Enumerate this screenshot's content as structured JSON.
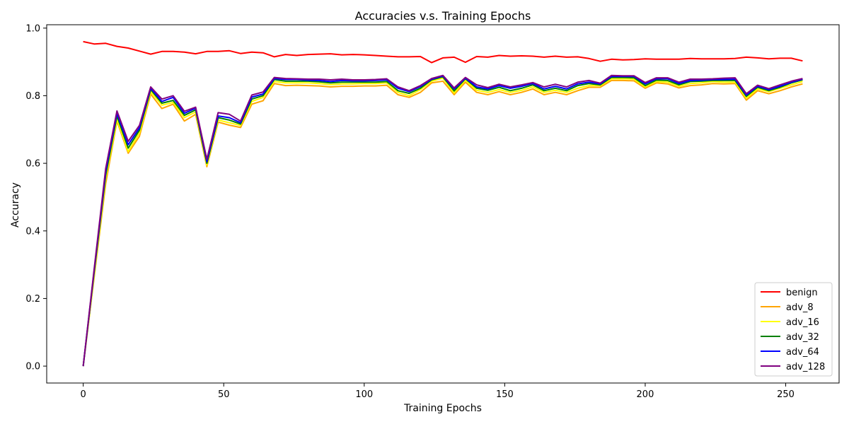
{
  "chart_data": {
    "type": "line",
    "title": "Accuracies v.s. Training Epochs",
    "xlabel": "Training Epochs",
    "ylabel": "Accuracy",
    "xlim": [
      -13,
      269
    ],
    "ylim": [
      -0.05,
      1.01
    ],
    "xticks": [
      0,
      50,
      100,
      150,
      200,
      250
    ],
    "yticks": [
      0.0,
      0.2,
      0.4,
      0.6,
      0.8,
      1.0
    ],
    "xtick_labels": [
      "0",
      "50",
      "100",
      "150",
      "200",
      "250"
    ],
    "ytick_labels": [
      "0.0",
      "0.2",
      "0.4",
      "0.6",
      "0.8",
      "1.0"
    ],
    "grid": false,
    "legend_position": "bottom-right",
    "x": [
      0,
      4,
      8,
      12,
      16,
      20,
      24,
      28,
      32,
      36,
      40,
      44,
      48,
      52,
      56,
      60,
      64,
      68,
      72,
      76,
      80,
      84,
      88,
      92,
      96,
      100,
      104,
      108,
      112,
      116,
      120,
      124,
      128,
      132,
      136,
      140,
      144,
      148,
      152,
      156,
      160,
      164,
      168,
      172,
      176,
      180,
      184,
      188,
      192,
      196,
      200,
      204,
      208,
      212,
      216,
      220,
      224,
      228,
      232,
      236,
      240,
      244,
      248,
      252,
      256
    ],
    "series": [
      {
        "name": "benign",
        "color": "#ff0000",
        "values": [
          0.96,
          0.953,
          0.955,
          0.946,
          0.941,
          0.932,
          0.923,
          0.931,
          0.931,
          0.929,
          0.924,
          0.931,
          0.931,
          0.933,
          0.925,
          0.929,
          0.927,
          0.915,
          0.922,
          0.919,
          0.922,
          0.923,
          0.924,
          0.921,
          0.922,
          0.921,
          0.919,
          0.917,
          0.915,
          0.915,
          0.916,
          0.898,
          0.912,
          0.914,
          0.899,
          0.916,
          0.914,
          0.919,
          0.917,
          0.918,
          0.917,
          0.914,
          0.917,
          0.914,
          0.915,
          0.91,
          0.902,
          0.908,
          0.906,
          0.907,
          0.909,
          0.908,
          0.908,
          0.908,
          0.91,
          0.909,
          0.909,
          0.909,
          0.91,
          0.914,
          0.912,
          0.909,
          0.911,
          0.911,
          0.903
        ]
      },
      {
        "name": "adv_8",
        "color": "#ffa500",
        "values": [
          0.0,
          0.27,
          0.54,
          0.725,
          0.63,
          0.68,
          0.805,
          0.762,
          0.775,
          0.725,
          0.745,
          0.59,
          0.722,
          0.713,
          0.706,
          0.775,
          0.785,
          0.836,
          0.83,
          0.831,
          0.83,
          0.829,
          0.826,
          0.828,
          0.828,
          0.829,
          0.829,
          0.831,
          0.803,
          0.795,
          0.81,
          0.838,
          0.843,
          0.803,
          0.84,
          0.81,
          0.803,
          0.812,
          0.803,
          0.81,
          0.82,
          0.803,
          0.81,
          0.803,
          0.815,
          0.825,
          0.825,
          0.845,
          0.845,
          0.844,
          0.822,
          0.838,
          0.835,
          0.823,
          0.83,
          0.832,
          0.836,
          0.835,
          0.836,
          0.787,
          0.815,
          0.806,
          0.815,
          0.826,
          0.835
        ]
      },
      {
        "name": "adv_16",
        "color": "#ffff00",
        "values": [
          0.0,
          0.275,
          0.555,
          0.73,
          0.635,
          0.69,
          0.812,
          0.772,
          0.78,
          0.735,
          0.752,
          0.595,
          0.728,
          0.72,
          0.712,
          0.783,
          0.795,
          0.842,
          0.838,
          0.838,
          0.838,
          0.836,
          0.833,
          0.835,
          0.835,
          0.836,
          0.836,
          0.838,
          0.81,
          0.8,
          0.818,
          0.843,
          0.852,
          0.808,
          0.846,
          0.816,
          0.81,
          0.818,
          0.81,
          0.816,
          0.826,
          0.81,
          0.816,
          0.81,
          0.822,
          0.83,
          0.83,
          0.85,
          0.85,
          0.849,
          0.826,
          0.842,
          0.84,
          0.828,
          0.836,
          0.838,
          0.842,
          0.84,
          0.84,
          0.793,
          0.82,
          0.812,
          0.822,
          0.832,
          0.842
        ]
      },
      {
        "name": "adv_32",
        "color": "#008000",
        "values": [
          0.0,
          0.285,
          0.565,
          0.74,
          0.645,
          0.698,
          0.818,
          0.778,
          0.786,
          0.742,
          0.758,
          0.6,
          0.735,
          0.728,
          0.716,
          0.79,
          0.8,
          0.848,
          0.843,
          0.843,
          0.843,
          0.841,
          0.838,
          0.84,
          0.84,
          0.84,
          0.84,
          0.842,
          0.815,
          0.807,
          0.822,
          0.847,
          0.856,
          0.814,
          0.85,
          0.822,
          0.816,
          0.825,
          0.815,
          0.822,
          0.832,
          0.815,
          0.822,
          0.815,
          0.83,
          0.836,
          0.832,
          0.854,
          0.854,
          0.853,
          0.83,
          0.846,
          0.845,
          0.832,
          0.842,
          0.843,
          0.845,
          0.845,
          0.845,
          0.798,
          0.825,
          0.815,
          0.825,
          0.838,
          0.847
        ]
      },
      {
        "name": "adv_64",
        "color": "#0000ff",
        "values": [
          0.0,
          0.29,
          0.575,
          0.748,
          0.655,
          0.705,
          0.822,
          0.783,
          0.795,
          0.748,
          0.763,
          0.605,
          0.74,
          0.735,
          0.72,
          0.796,
          0.805,
          0.851,
          0.848,
          0.848,
          0.846,
          0.845,
          0.842,
          0.845,
          0.844,
          0.844,
          0.845,
          0.847,
          0.822,
          0.812,
          0.827,
          0.849,
          0.858,
          0.82,
          0.852,
          0.826,
          0.82,
          0.83,
          0.822,
          0.828,
          0.836,
          0.82,
          0.828,
          0.82,
          0.835,
          0.84,
          0.835,
          0.857,
          0.857,
          0.857,
          0.835,
          0.85,
          0.85,
          0.836,
          0.845,
          0.846,
          0.848,
          0.848,
          0.849,
          0.802,
          0.828,
          0.818,
          0.828,
          0.84,
          0.849
        ]
      },
      {
        "name": "adv_128",
        "color": "#800080",
        "values": [
          0.0,
          0.295,
          0.585,
          0.755,
          0.665,
          0.712,
          0.826,
          0.79,
          0.8,
          0.754,
          0.766,
          0.612,
          0.75,
          0.745,
          0.725,
          0.802,
          0.811,
          0.854,
          0.851,
          0.85,
          0.849,
          0.849,
          0.847,
          0.849,
          0.847,
          0.847,
          0.848,
          0.85,
          0.826,
          0.815,
          0.83,
          0.851,
          0.86,
          0.823,
          0.854,
          0.832,
          0.824,
          0.834,
          0.826,
          0.832,
          0.839,
          0.826,
          0.834,
          0.826,
          0.84,
          0.845,
          0.837,
          0.86,
          0.859,
          0.859,
          0.839,
          0.853,
          0.853,
          0.84,
          0.849,
          0.849,
          0.85,
          0.852,
          0.853,
          0.806,
          0.831,
          0.821,
          0.832,
          0.843,
          0.851
        ]
      }
    ]
  }
}
